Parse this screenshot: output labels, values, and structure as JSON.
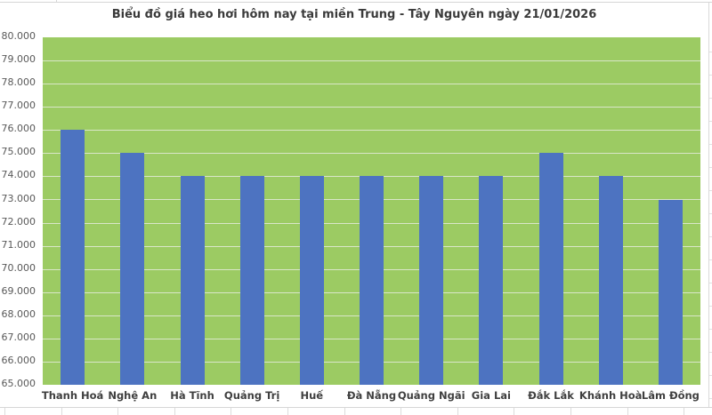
{
  "title": "Biểu đồ giá heo hơi hôm nay tại miền Trung - Tây Nguyên ngày 21/01/2026",
  "chart_data": {
    "type": "bar",
    "title": "Biểu đồ giá heo hơi hôm nay tại miền Trung - Tây Nguyên ngày 21/01/2026",
    "categories": [
      "Thanh Hoá",
      "Nghệ An",
      "Hà Tĩnh",
      "Quảng Trị",
      "Huế",
      "Đà Nẵng",
      "Quảng Ngãi",
      "Gia Lai",
      "Đắk Lắk",
      "Khánh Hoà",
      "Lâm Đồng"
    ],
    "values": [
      76000,
      75000,
      74000,
      74000,
      74000,
      74000,
      74000,
      74000,
      75000,
      74000,
      73000
    ],
    "xlabel": "",
    "ylabel": "",
    "ylim": [
      65000,
      80000
    ],
    "ytick_step": 1000,
    "ytick_labels": [
      "80.000",
      "79.000",
      "78.000",
      "77.000",
      "76.000",
      "75.000",
      "74.000",
      "73.000",
      "72.000",
      "71.000",
      "70.000",
      "69.000",
      "68.000",
      "67.000",
      "66.000",
      "65.000"
    ],
    "grid": true,
    "legend": "none",
    "colors": {
      "bar": "#4d73c1",
      "plot_background": "#9ccb63",
      "gridline": "#d9e6c8",
      "title_text": "#3a3a3a",
      "y_axis_text": "#595959",
      "category_text": "#3f3f3f"
    }
  }
}
